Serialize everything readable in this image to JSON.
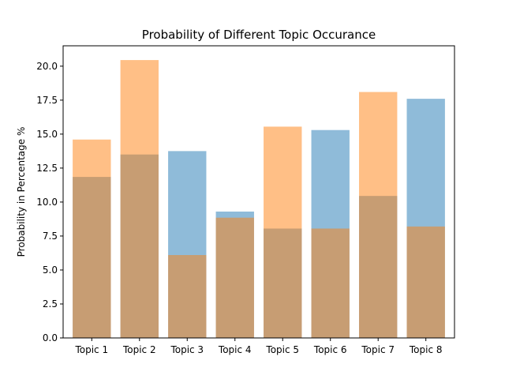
{
  "chart_data": {
    "type": "bar",
    "title": "Probability of Different Topic Occurance",
    "xlabel": "",
    "ylabel": "Probability in Percentage %",
    "categories": [
      "Topic 1",
      "Topic 2",
      "Topic 3",
      "Topic 4",
      "Topic 5",
      "Topic 6",
      "Topic 7",
      "Topic 8"
    ],
    "series": [
      {
        "values": [
          11.85,
          13.5,
          13.75,
          9.3,
          8.05,
          15.3,
          10.45,
          17.6
        ],
        "color": "#1f77b4",
        "opacity": 0.5
      },
      {
        "values": [
          14.6,
          20.45,
          6.1,
          8.85,
          15.55,
          8.05,
          18.1,
          8.2
        ],
        "color": "#ff7f0e",
        "opacity": 0.5
      }
    ],
    "ylim": [
      0,
      21.5
    ],
    "yticks": [
      "0.0",
      "2.5",
      "5.0",
      "7.5",
      "10.0",
      "12.5",
      "15.0",
      "17.5",
      "20.0"
    ],
    "grid": false,
    "legend": "none"
  }
}
